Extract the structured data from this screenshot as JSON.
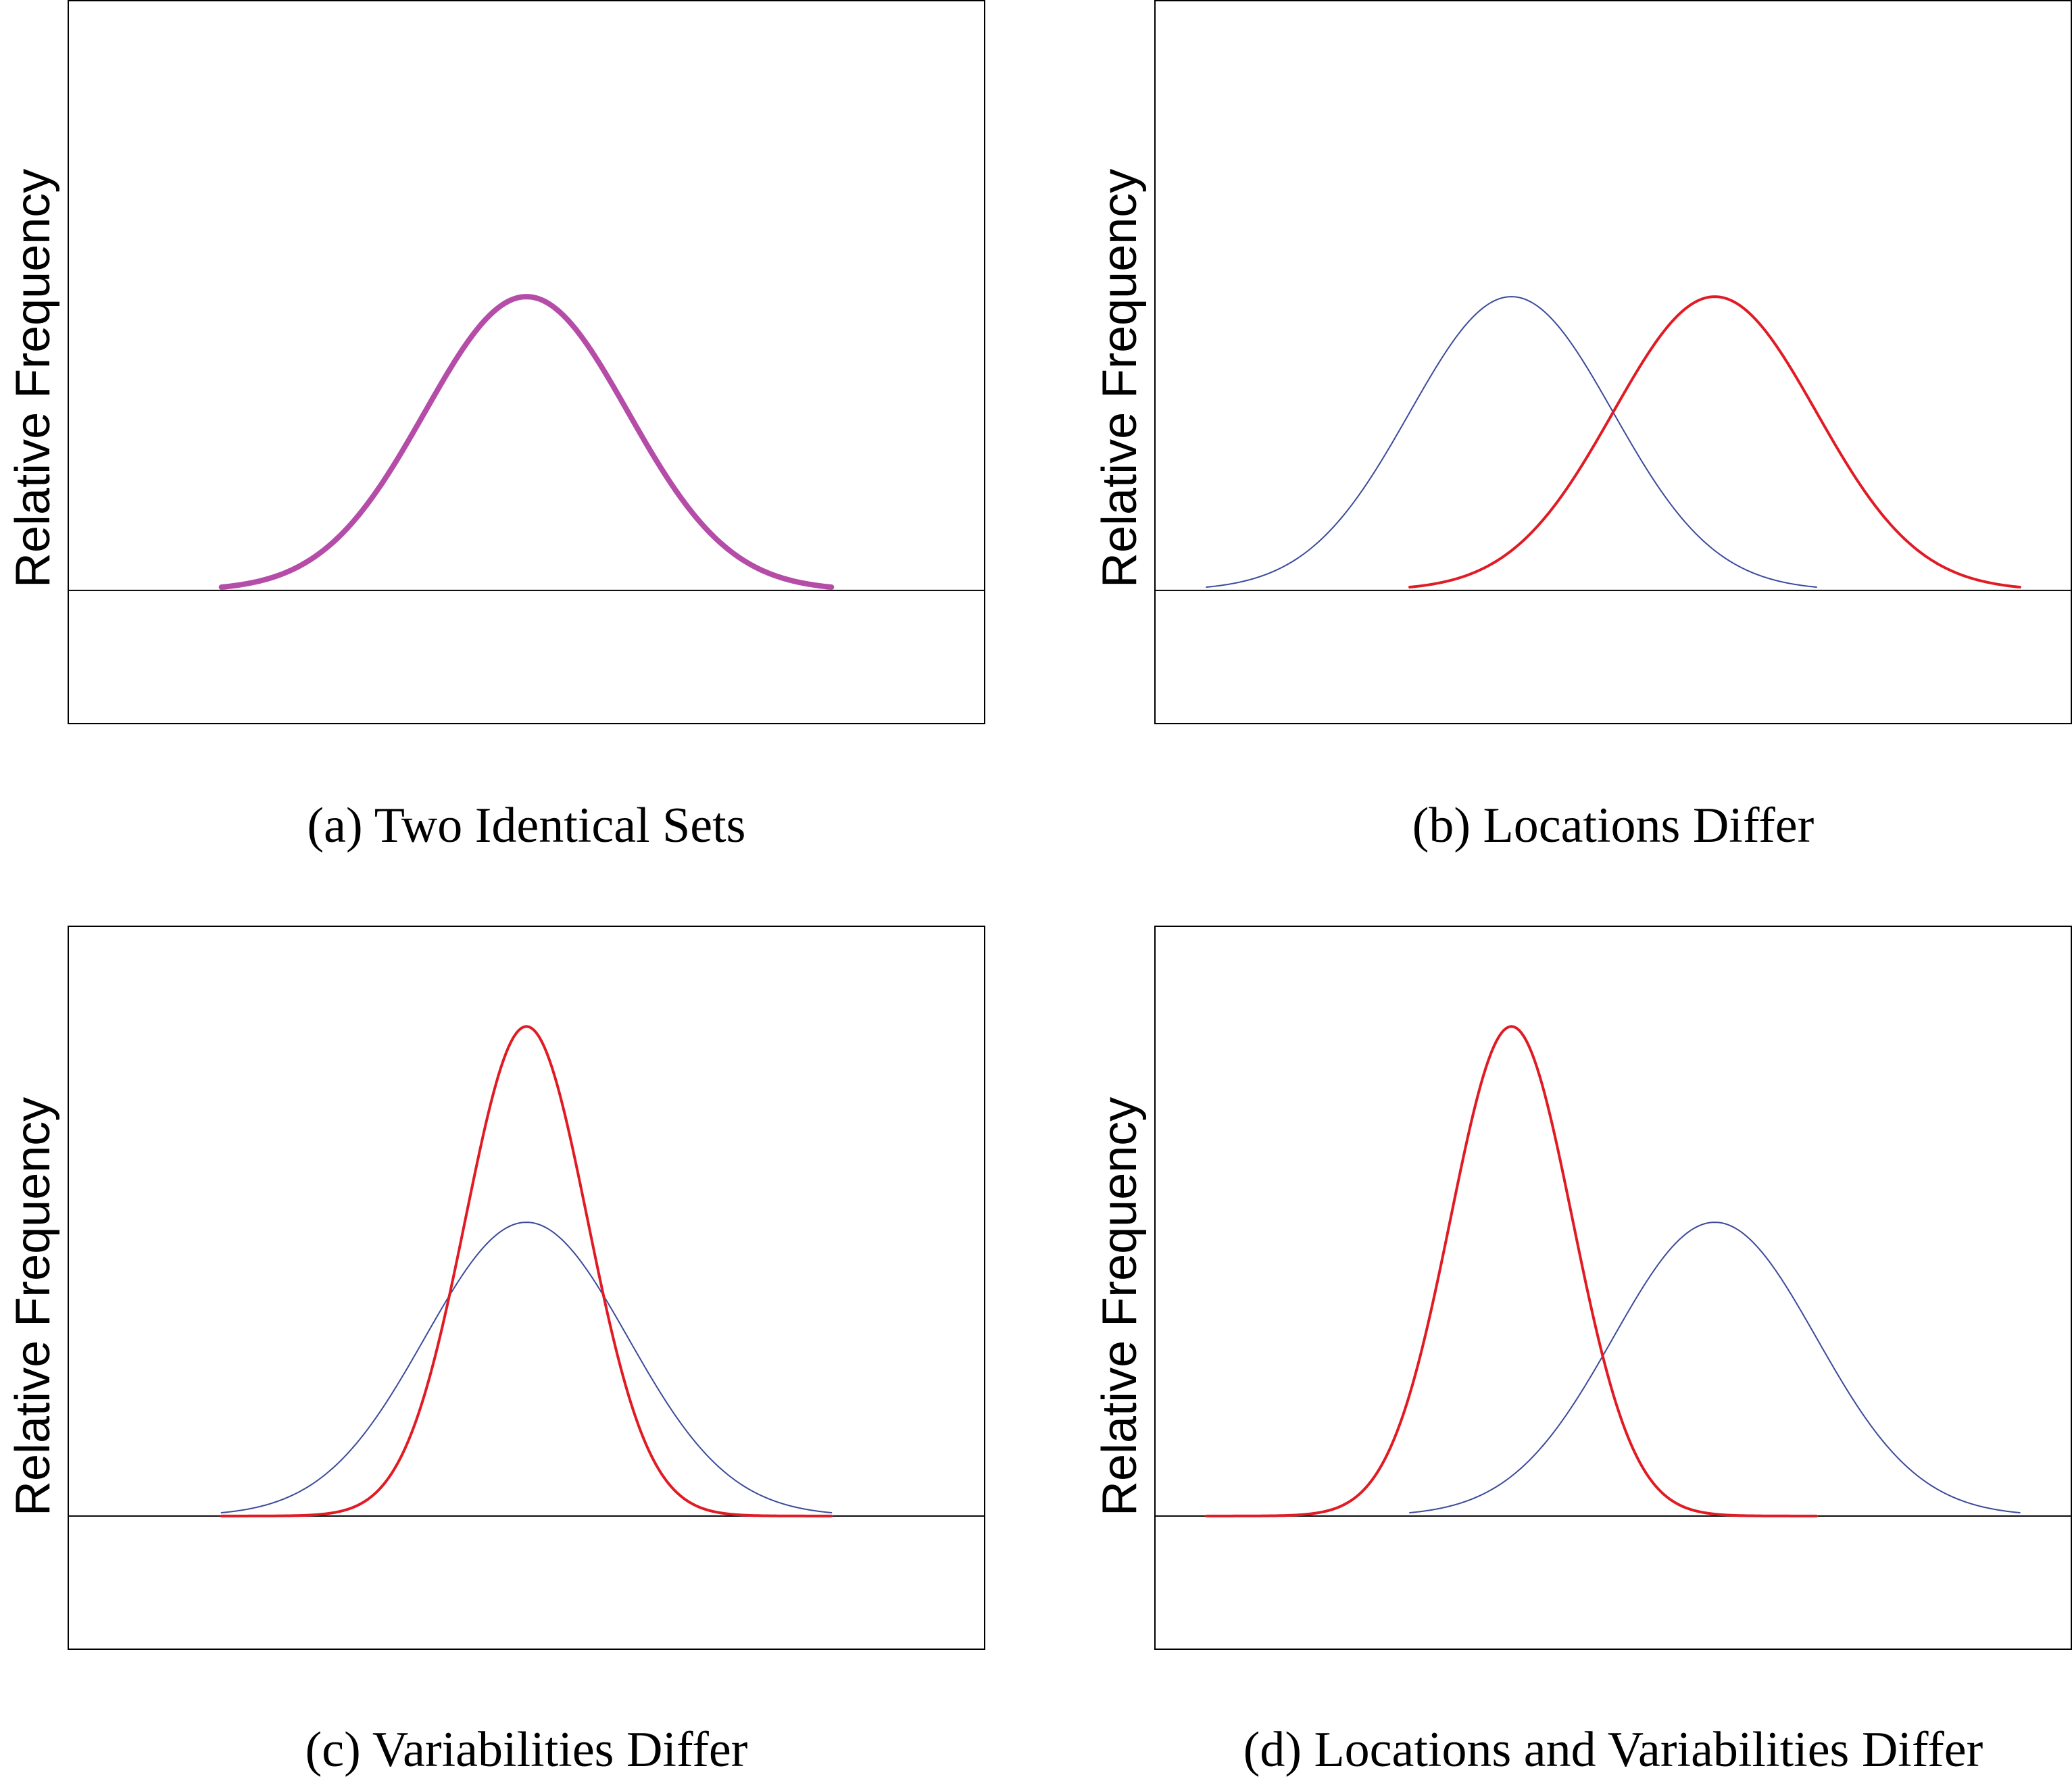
{
  "colors": {
    "purple": "#b44ca8",
    "blue": "#3b4a9b",
    "red": "#e01b24",
    "axis": "#000000"
  },
  "chart_data": [
    {
      "type": "line",
      "caption": "(a) Two Identical Sets",
      "ylabel": "Relative Frequency",
      "xlim": [
        -4.5,
        4.5
      ],
      "ylim": [
        -0.18,
        0.8
      ],
      "series": [
        {
          "mean": 0,
          "sd": 1,
          "x_range": [
            -3,
            3
          ],
          "color": "#b44ca8",
          "width": 8
        }
      ]
    },
    {
      "type": "line",
      "caption": "(b) Locations Differ",
      "ylabel": "Relative Frequency",
      "xlim": [
        -4.5,
        4.5
      ],
      "ylim": [
        -0.18,
        0.8
      ],
      "series": [
        {
          "mean": -1,
          "sd": 1,
          "x_range": [
            -4,
            2
          ],
          "color": "#3b4a9b",
          "width": 2
        },
        {
          "mean": 1,
          "sd": 1,
          "x_range": [
            -2,
            4
          ],
          "color": "#e01b24",
          "width": 4
        }
      ]
    },
    {
      "type": "line",
      "caption": "(c) Variabilities Differ",
      "ylabel": "Relative Frequency",
      "xlim": [
        -4.5,
        4.5
      ],
      "ylim": [
        -0.18,
        0.8
      ],
      "series": [
        {
          "mean": 0,
          "sd": 1,
          "x_range": [
            -3,
            3
          ],
          "color": "#3b4a9b",
          "width": 2
        },
        {
          "mean": 0,
          "sd": 0.6,
          "x_range": [
            -3,
            3
          ],
          "color": "#e01b24",
          "width": 4
        }
      ]
    },
    {
      "type": "line",
      "caption": "(d) Locations and Variabilities Differ",
      "ylabel": "Relative Frequency",
      "xlim": [
        -4.5,
        4.5
      ],
      "ylim": [
        -0.18,
        0.8
      ],
      "series": [
        {
          "mean": 1,
          "sd": 1,
          "x_range": [
            -2,
            4
          ],
          "color": "#3b4a9b",
          "width": 2
        },
        {
          "mean": -1,
          "sd": 0.6,
          "x_range": [
            -4,
            2
          ],
          "color": "#e01b24",
          "width": 4
        }
      ]
    }
  ]
}
